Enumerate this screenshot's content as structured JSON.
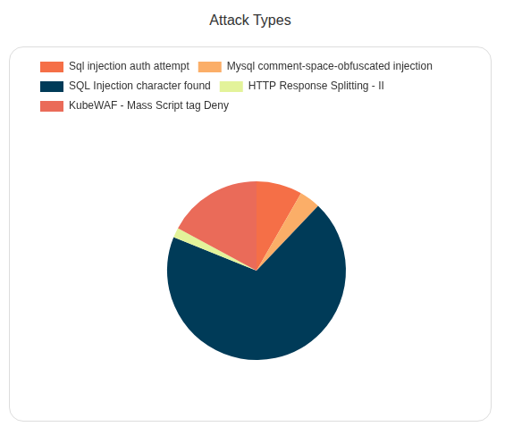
{
  "chart_data": {
    "type": "pie",
    "title": "Attack Types",
    "categories": [
      "Sql injection auth attempt",
      "Mysql comment-space-obfuscated injection",
      "SQL Injection character found",
      "HTTP Response Splitting - II",
      "KubeWAF - Mass Script tag Deny"
    ],
    "values": [
      8.3,
      3.8,
      69,
      1.8,
      17.1
    ],
    "colors": [
      "#f56f47",
      "#fbae68",
      "#003b58",
      "#e3f39a",
      "#ea6b59"
    ],
    "legend": "top"
  }
}
